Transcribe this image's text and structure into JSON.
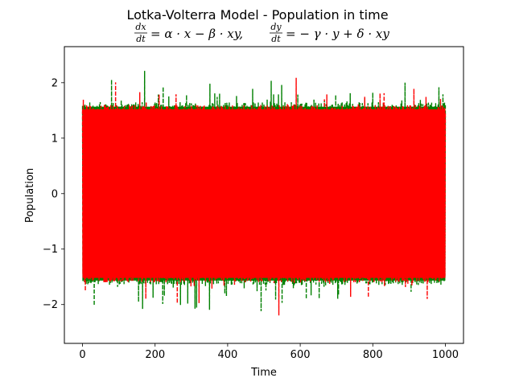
{
  "chart_data": {
    "type": "line",
    "title": "Lotka-Volterra Model - Population in time",
    "subtitle": {
      "eq1_lhs_num": "dx",
      "eq1_lhs_den": "dt",
      "eq1_rhs": "= α · x − β · xy,",
      "eq2_lhs_num": "dy",
      "eq2_lhs_den": "dt",
      "eq2_rhs": "= − γ · y + δ · xy"
    },
    "xlabel": "Time",
    "ylabel": "Population",
    "xlim": [
      -50,
      1050
    ],
    "ylim": [
      -2.7,
      2.65
    ],
    "xticks": [
      0,
      200,
      400,
      600,
      800,
      1000
    ],
    "yticks": [
      -2,
      -1,
      0,
      1,
      2
    ],
    "xtick_labels": [
      "0",
      "200",
      "400",
      "600",
      "800",
      "1000"
    ],
    "ytick_labels": [
      "−2",
      "−1",
      "0",
      "1",
      "2"
    ],
    "x_range": [
      0,
      1000
    ],
    "series": [
      {
        "color": "#008000",
        "linestyle": "dashed",
        "typical_range": [
          -1.65,
          1.65
        ],
        "max": 2.3,
        "min": -2.5
      },
      {
        "color": "#ff0000",
        "linestyle": "dashed",
        "typical_range": [
          -1.6,
          1.6
        ],
        "max": 2.37,
        "min": -2.5
      }
    ]
  }
}
